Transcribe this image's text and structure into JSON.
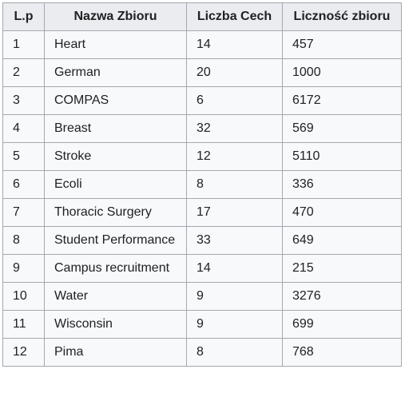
{
  "table": {
    "headers": [
      "L.p",
      "Nazwa Zbioru",
      "Liczba Cech",
      "Liczność zbioru"
    ],
    "rows": [
      [
        "1",
        "Heart",
        "14",
        "457"
      ],
      [
        "2",
        "German",
        "20",
        "1000"
      ],
      [
        "3",
        "COMPAS",
        "6",
        "6172"
      ],
      [
        "4",
        "Breast",
        "32",
        "569"
      ],
      [
        "5",
        "Stroke",
        "12",
        "5110"
      ],
      [
        "6",
        "Ecoli",
        "8",
        "336"
      ],
      [
        "7",
        "Thoracic Surgery",
        "17",
        "470"
      ],
      [
        "8",
        "Student Performance",
        "33",
        "649"
      ],
      [
        "9",
        "Campus recruitment",
        "14",
        "215"
      ],
      [
        "10",
        "Water",
        "9",
        "3276"
      ],
      [
        "11",
        "Wisconsin",
        "9",
        "699"
      ],
      [
        "12",
        "Pima",
        "8",
        "768"
      ]
    ]
  }
}
